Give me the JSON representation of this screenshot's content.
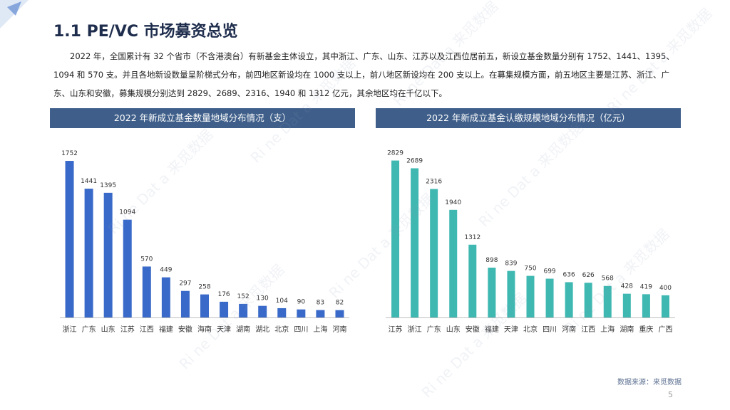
{
  "page": {
    "title": "1.1 PE/VC 市场募资总览",
    "intro": "2022 年，全国累计有 32 个省市（不含港澳台）有新基金主体设立，其中浙江、广东、山东、江苏以及江西位居前五，新设立基金数量分别有 1752、1441、1395、1094 和 570 支。并且各地新设数量呈阶梯式分布，前四地区新设均在 1000 支以上，前八地区新设均在 200 支以上。在募集规模方面，前五地区主要是江苏、浙江、广东、山东和安徽，募集规模分别达到 2829、2689、2316、1940 和 1312 亿元，其余地区均在千亿以下。",
    "source": "数据来源：来觅数据",
    "page_number": "5",
    "watermark_text": "Ri ne Dat a 来觅数据"
  },
  "colors": {
    "header_bg": "#3f5f8a",
    "left_bar": "#3a6ac9",
    "right_bar": "#3fb8b2",
    "title": "#1f2d4d"
  },
  "chart_data": [
    {
      "type": "bar",
      "title": "2022 年新成立基金数量地域分布情况（支）",
      "categories": [
        "浙江",
        "广东",
        "山东",
        "江苏",
        "江西",
        "福建",
        "安徽",
        "海南",
        "天津",
        "湖南",
        "湖北",
        "北京",
        "四川",
        "上海",
        "河南"
      ],
      "values": [
        1752,
        1441,
        1395,
        1094,
        570,
        449,
        297,
        258,
        176,
        152,
        130,
        104,
        90,
        83,
        82
      ],
      "ylim": [
        0,
        1800
      ],
      "grid": false
    },
    {
      "type": "bar",
      "title": "2022 年新成立基金认缴规模地域分布情况（亿元）",
      "categories": [
        "江苏",
        "浙江",
        "广东",
        "山东",
        "安徽",
        "福建",
        "天津",
        "北京",
        "四川",
        "河南",
        "江西",
        "上海",
        "湖南",
        "重庆",
        "广西"
      ],
      "values": [
        2829,
        2689,
        2316,
        1940,
        1312,
        898,
        839,
        750,
        699,
        636,
        626,
        568,
        428,
        419,
        400
      ],
      "ylim": [
        0,
        2900
      ],
      "grid": false
    }
  ]
}
